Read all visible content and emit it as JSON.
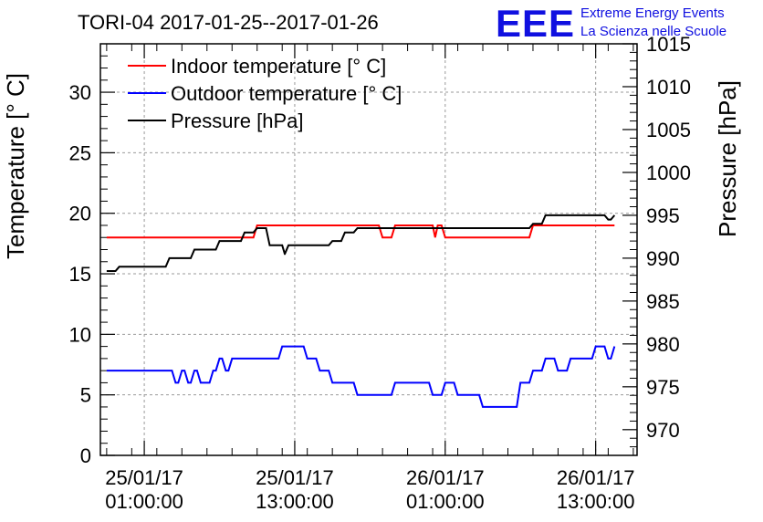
{
  "chart_data": {
    "type": "line",
    "title": "TORI-04 2017-01-25--2017-01-26",
    "ylabel": "Temperature [° C]",
    "y2label": "Pressure [hPa]",
    "ylim": [
      0,
      34
    ],
    "y2lim": [
      967,
      1015
    ],
    "yticks": [
      0,
      5,
      10,
      15,
      20,
      25,
      30
    ],
    "y2ticks": [
      970,
      975,
      980,
      985,
      990,
      995,
      1000,
      1005,
      1010,
      1015
    ],
    "x_tick_labels": [
      {
        "date": "25/01/17",
        "time": "01:00:00"
      },
      {
        "date": "25/01/17",
        "time": "13:00:00"
      },
      {
        "date": "26/01/17",
        "time": "01:00:00"
      },
      {
        "date": "26/01/17",
        "time": "13:00:00"
      }
    ],
    "x_tick_hours": [
      1,
      13,
      25,
      37
    ],
    "xlim_hours": [
      -2.5,
      40.3
    ],
    "grid": true,
    "legend_position": "top-left",
    "series": [
      {
        "name": "Indoor temperature [° C]",
        "color": "#ff0000",
        "axis": "left",
        "x": [
          -2,
          3,
          5,
          7,
          9,
          10,
          15,
          18,
          20,
          21,
          22,
          24,
          24.2,
          24.4,
          25,
          31,
          32,
          33,
          38.5
        ],
        "y": [
          18,
          18,
          18,
          18,
          18,
          19,
          19,
          19,
          18,
          19,
          19,
          19,
          18,
          19,
          18,
          18,
          19,
          19,
          19
        ]
      },
      {
        "name": "Outdoor temperature [° C]",
        "color": "#0000ff",
        "axis": "left",
        "x": [
          -2,
          3,
          3.5,
          4,
          4.5,
          5,
          5.5,
          6.5,
          7,
          7.5,
          8,
          8.5,
          9,
          12,
          13,
          14,
          15,
          16,
          17.5,
          18,
          21,
          22,
          23,
          24,
          25,
          26,
          27,
          28,
          30,
          31,
          32,
          33,
          34,
          35,
          36,
          37,
          38,
          38.5
        ],
        "y": [
          7,
          7,
          6,
          7,
          6,
          7,
          6,
          7,
          8,
          7,
          8,
          8,
          8,
          9,
          9,
          8,
          7,
          6,
          6,
          5,
          6,
          6,
          6,
          5,
          6,
          5,
          5,
          4,
          4,
          6,
          7,
          8,
          7,
          8,
          8,
          9,
          8,
          9
        ]
      },
      {
        "name": "Pressure [hPa]",
        "color": "#000000",
        "axis": "right",
        "x": [
          -2,
          -1,
          1,
          3,
          5,
          7,
          9,
          10,
          11,
          12,
          12.2,
          12.5,
          13,
          16,
          17,
          18,
          19,
          20,
          21,
          22,
          24,
          25,
          26,
          31,
          32,
          33,
          35,
          37,
          38,
          38.5
        ],
        "y": [
          988.5,
          989,
          989,
          990,
          991,
          992,
          993,
          993.5,
          991.5,
          991.5,
          990.5,
          991.5,
          991.5,
          992,
          993,
          993.5,
          993.5,
          993.5,
          993.5,
          993.5,
          993.5,
          993.5,
          993.5,
          993.5,
          994,
          995,
          995,
          995,
          994.5,
          995
        ]
      }
    ]
  },
  "branding": {
    "logo": "EEE",
    "line1": "Extreme Energy Events",
    "line2": "La Scienza nelle Scuole",
    "color": "#1010e0"
  }
}
